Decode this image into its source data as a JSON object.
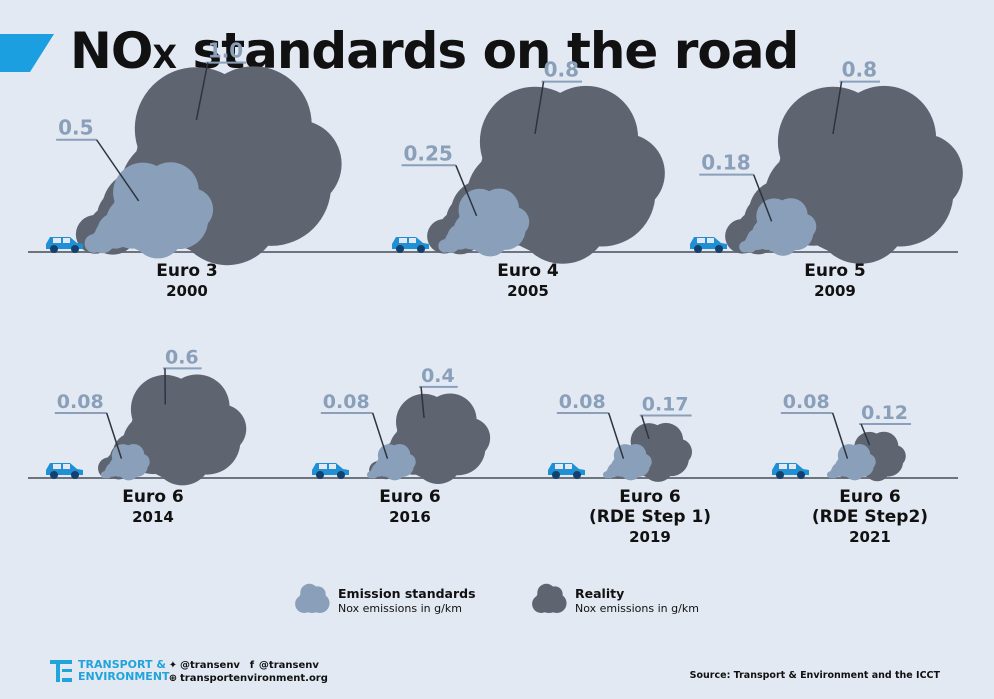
{
  "title": {
    "main": "NO",
    "sub": "X",
    "rest": " standards on the road"
  },
  "chart_data": {
    "type": "bubble",
    "title": "NOx standards on the road",
    "unit": "NOx emissions in g/km",
    "series": [
      {
        "name": "Emission standards",
        "values": [
          0.5,
          0.25,
          0.18,
          0.08,
          0.08,
          0.08,
          0.08
        ]
      },
      {
        "name": "Reality",
        "values": [
          1.0,
          0.8,
          0.8,
          0.6,
          0.4,
          0.17,
          0.12
        ]
      }
    ],
    "panels": [
      {
        "standard": "Euro 3",
        "extra": "",
        "year": "2000",
        "std_label": "0.5",
        "real_label": "1.0",
        "std": 0.5,
        "real": 1.0
      },
      {
        "standard": "Euro 4",
        "extra": "",
        "year": "2005",
        "std_label": "0.25",
        "real_label": "0.8",
        "std": 0.25,
        "real": 0.8
      },
      {
        "standard": "Euro 5",
        "extra": "",
        "year": "2009",
        "std_label": "0.18",
        "real_label": "0.8",
        "std": 0.18,
        "real": 0.8
      },
      {
        "standard": "Euro 6",
        "extra": "",
        "year": "2014",
        "std_label": "0.08",
        "real_label": "0.6",
        "std": 0.08,
        "real": 0.6
      },
      {
        "standard": "Euro 6",
        "extra": "",
        "year": "2016",
        "std_label": "0.08",
        "real_label": "0.4",
        "std": 0.08,
        "real": 0.4
      },
      {
        "standard": "Euro 6",
        "extra": "(RDE Step 1)",
        "year": "2019",
        "std_label": "0.08",
        "real_label": "0.17",
        "std": 0.08,
        "real": 0.17
      },
      {
        "standard": "Euro 6",
        "extra": "(RDE Step2)",
        "year": "2021",
        "std_label": "0.08",
        "real_label": "0.12",
        "std": 0.08,
        "real": 0.12
      }
    ],
    "colors": {
      "standard": "#8a9fb9",
      "reality": "#5e6470",
      "car": "#1f8fd6",
      "road": "#6d7480",
      "label": "#8a9fb9"
    }
  },
  "legend": {
    "standard_label": "Emission standards",
    "standard_unit": "Nox emissions in g/km",
    "reality_label": "Reality",
    "reality_unit": "Nox emissions in g/km"
  },
  "footer": {
    "org_line1": "TRANSPORT &",
    "org_line2": "ENVIRONMENT",
    "twitter": "@transenv",
    "facebook": "@transenv",
    "website": "transportenvironment.org",
    "source": "Source: Transport & Environment and the ICCT"
  }
}
